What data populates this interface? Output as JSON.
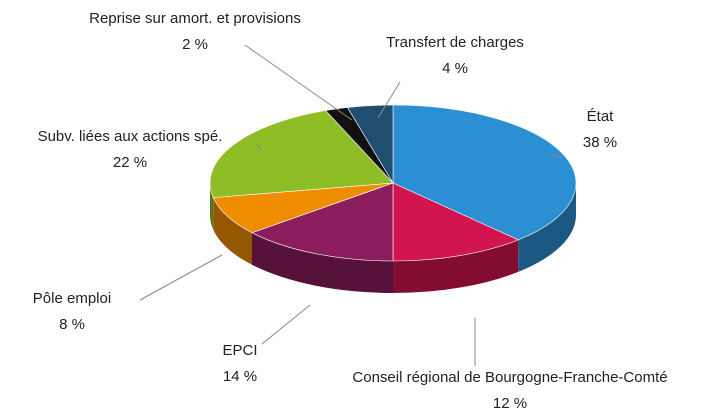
{
  "chart_data": {
    "type": "pie",
    "categories": [
      "État",
      "Conseil régional de Bourgogne-Franche-Comté",
      "EPCI",
      "Pôle emploi",
      "Subv. liées aux actions spé.",
      "Reprise sur amort. et provisions",
      "Transfert de charges"
    ],
    "values": [
      38,
      12,
      14,
      8,
      22,
      2,
      4
    ],
    "value_labels": [
      "38 %",
      "12 %",
      "14 %",
      "8 %",
      "22 %",
      "2 %",
      "4 %"
    ],
    "colors": [
      "#2b8fd3",
      "#d3154f",
      "#8c1d5c",
      "#f08c00",
      "#8fbd26",
      "#111111",
      "#1f4e70"
    ]
  }
}
